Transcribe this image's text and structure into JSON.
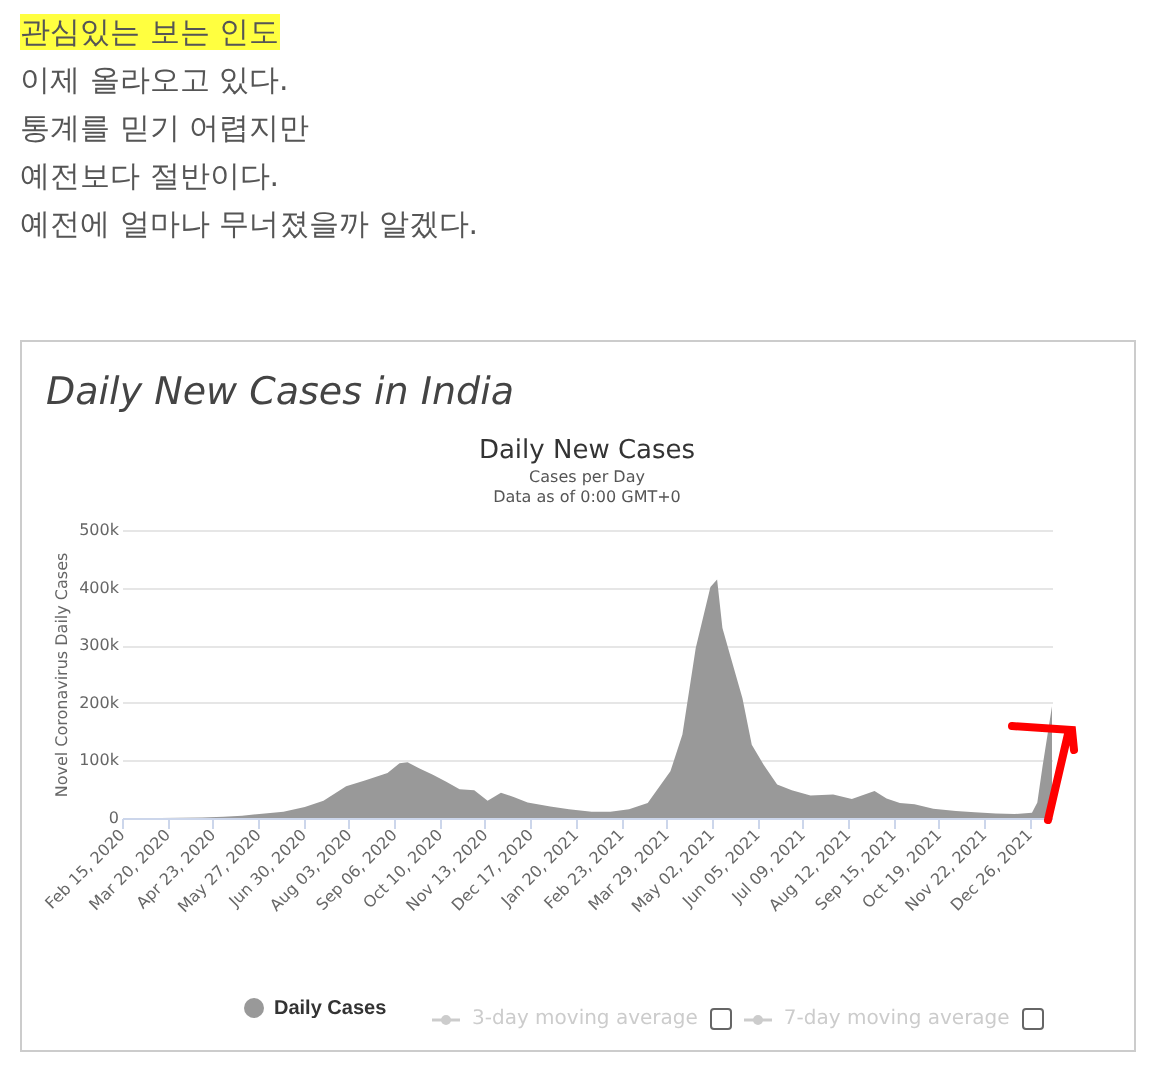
{
  "chart_data": {
    "type": "area",
    "title": "Daily New Cases",
    "subtitle": "Cases per Day\nData as of 0:00 GMT+0",
    "ylabel": "Novel Coronavirus Daily Cases",
    "annotations": [
      "관심있는 보는 인도",
      "이제 올라오고 있다.",
      "통계를 믿기 어렵지만",
      "예전보다 절반이다.",
      "예전에 얼마나 무너졌을까 알겠다.",
      "Daily New Cases in India",
      "3-day moving average",
      "7-day moving average"
    ],
    "x": [
      "2020-02-15",
      "2020-03-15",
      "2020-04-15",
      "2020-05-01",
      "2020-05-15",
      "2020-06-01",
      "2020-06-15",
      "2020-07-01",
      "2020-07-15",
      "2020-08-01",
      "2020-08-15",
      "2020-09-01",
      "2020-09-10",
      "2020-09-16",
      "2020-09-25",
      "2020-10-05",
      "2020-10-15",
      "2020-10-25",
      "2020-11-05",
      "2020-11-15",
      "2020-11-25",
      "2020-12-05",
      "2020-12-15",
      "2021-01-01",
      "2021-01-15",
      "2021-02-01",
      "2021-02-15",
      "2021-03-01",
      "2021-03-15",
      "2021-04-01",
      "2021-04-10",
      "2021-04-20",
      "2021-05-01",
      "2021-05-06",
      "2021-05-10",
      "2021-05-16",
      "2021-05-25",
      "2021-06-01",
      "2021-06-10",
      "2021-06-20",
      "2021-07-01",
      "2021-07-15",
      "2021-08-01",
      "2021-08-15",
      "2021-09-01",
      "2021-09-10",
      "2021-09-20",
      "2021-10-01",
      "2021-10-15",
      "2021-11-01",
      "2021-11-15",
      "2021-12-01",
      "2021-12-15",
      "2021-12-28",
      "2022-01-01",
      "2022-01-05",
      "2022-01-12"
    ],
    "series": [
      {
        "name": "Daily Cases",
        "color": "#999999",
        "values": [
          0,
          0,
          1000,
          2000,
          4000,
          8000,
          11000,
          19000,
          30000,
          55000,
          65000,
          78000,
          95000,
          97000,
          86000,
          75000,
          63000,
          50000,
          48000,
          30000,
          44000,
          36000,
          27000,
          20000,
          15000,
          11000,
          11000,
          15000,
          26000,
          81000,
          145000,
          295000,
          401000,
          414000,
          330000,
          281000,
          208000,
          127000,
          92000,
          58000,
          48000,
          39000,
          41000,
          33000,
          47000,
          34000,
          26000,
          24000,
          16000,
          12000,
          10000,
          8000,
          7000,
          9000,
          27000,
          91000,
          194000
        ]
      }
    ],
    "xlim": [
      "2020-02-15",
      "2022-01-12"
    ],
    "xticks": [
      {
        "value": "2020-02-15",
        "label": "Feb 15, 2020"
      },
      {
        "value": "2020-03-20",
        "label": "Mar 20, 2020"
      },
      {
        "value": "2020-04-23",
        "label": "Apr 23, 2020"
      },
      {
        "value": "2020-05-27",
        "label": "May 27, 2020"
      },
      {
        "value": "2020-06-30",
        "label": "Jun 30, 2020"
      },
      {
        "value": "2020-08-03",
        "label": "Aug 03, 2020"
      },
      {
        "value": "2020-09-06",
        "label": "Sep 06, 2020"
      },
      {
        "value": "2020-10-10",
        "label": "Oct 10, 2020"
      },
      {
        "value": "2020-11-13",
        "label": "Nov 13, 2020"
      },
      {
        "value": "2020-12-17",
        "label": "Dec 17, 2020"
      },
      {
        "value": "2021-01-20",
        "label": "Jan 20, 2021"
      },
      {
        "value": "2021-02-23",
        "label": "Feb 23, 2021"
      },
      {
        "value": "2021-03-29",
        "label": "Mar 29, 2021"
      },
      {
        "value": "2021-05-02",
        "label": "May 02, 2021"
      },
      {
        "value": "2021-06-05",
        "label": "Jun 05, 2021"
      },
      {
        "value": "2021-07-09",
        "label": "Jul 09, 2021"
      },
      {
        "value": "2021-08-12",
        "label": "Aug 12, 2021"
      },
      {
        "value": "2021-09-15",
        "label": "Sep 15, 2021"
      },
      {
        "value": "2021-10-19",
        "label": "Oct 19, 2021"
      },
      {
        "value": "2021-11-22",
        "label": "Nov 22, 2021"
      },
      {
        "value": "2021-12-26",
        "label": "Dec 26, 2021"
      }
    ],
    "ylim": [
      0,
      500000
    ],
    "yticks": [
      0,
      {
        "value": 100000,
        "label": "100k"
      },
      {
        "value": 200000,
        "label": "200k"
      },
      {
        "value": 300000,
        "label": "300k"
      },
      {
        "value": 400000,
        "label": "400k"
      },
      {
        "value": 500000,
        "label": "500k"
      }
    ],
    "grid": "y",
    "legend": "bottom"
  }
}
